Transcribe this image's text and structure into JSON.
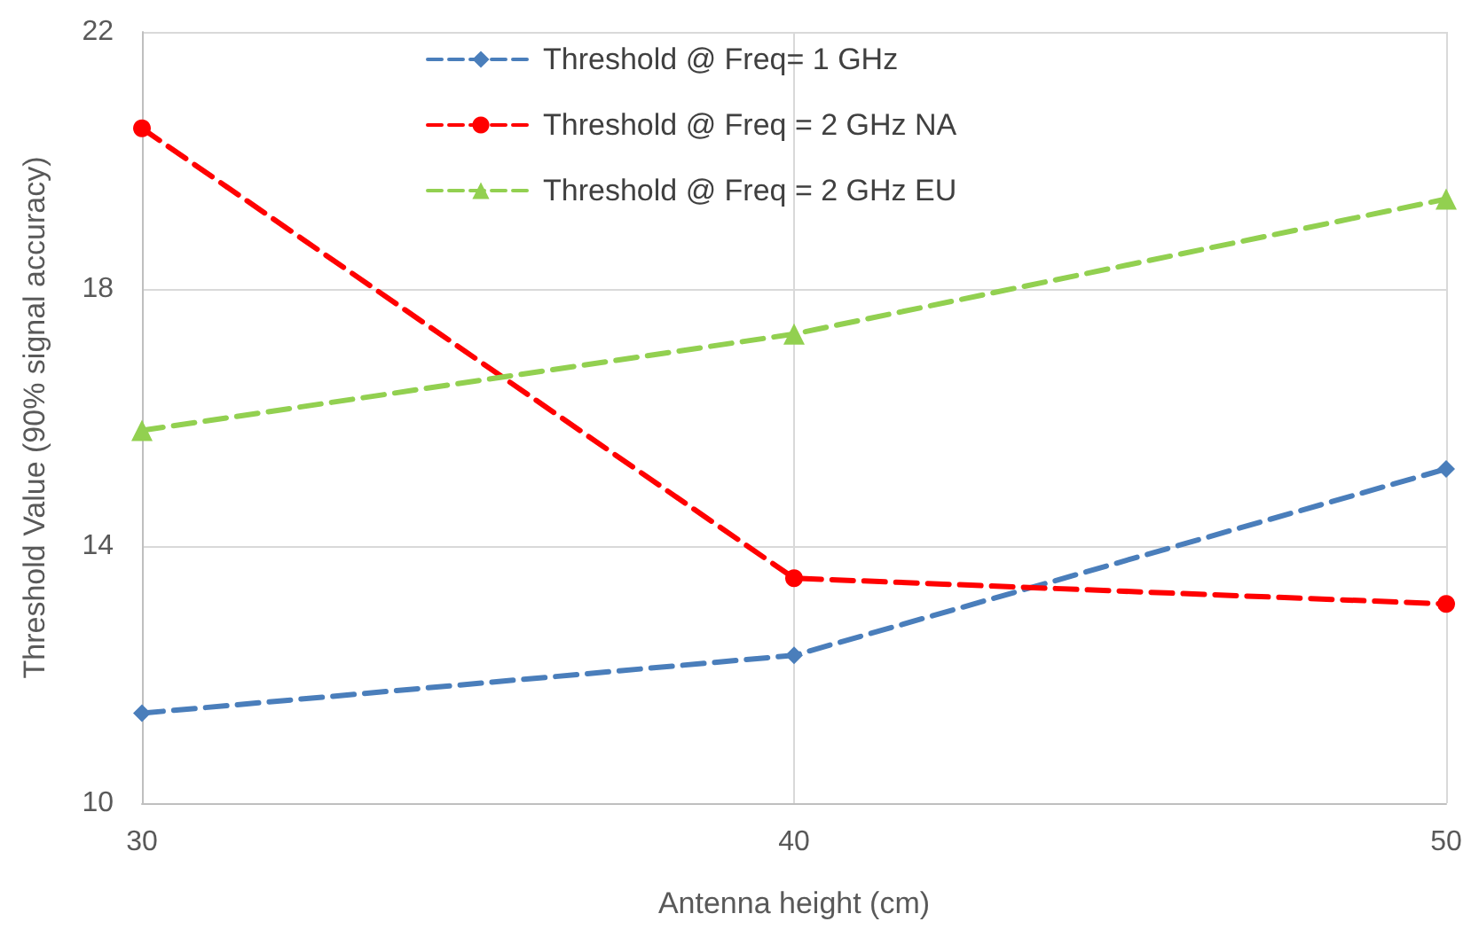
{
  "chart_data": {
    "type": "line",
    "xlabel": "Antenna height (cm)",
    "ylabel": "Threshold Value (90% signal accuracy)",
    "x": [
      30,
      40,
      50
    ],
    "xlim": [
      30,
      50
    ],
    "xticks": [
      30,
      40,
      50
    ],
    "ylim": [
      10,
      22
    ],
    "yticks": [
      10,
      14,
      18,
      22
    ],
    "grid": true,
    "legend": "top",
    "line_style": "dashed",
    "series": [
      {
        "name": "Threshold @ Freq= 1 GHz",
        "color": "#4a7ebb",
        "marker": "diamond",
        "values": [
          11.4,
          12.3,
          15.2
        ]
      },
      {
        "name": "Threshold @ Freq = 2 GHz NA",
        "color": "#ff0000",
        "marker": "circle",
        "values": [
          20.5,
          13.5,
          13.1
        ]
      },
      {
        "name": "Threshold @ Freq = 2 GHz EU",
        "color": "#92d050",
        "marker": "triangle",
        "values": [
          15.8,
          17.3,
          19.4
        ]
      }
    ]
  }
}
